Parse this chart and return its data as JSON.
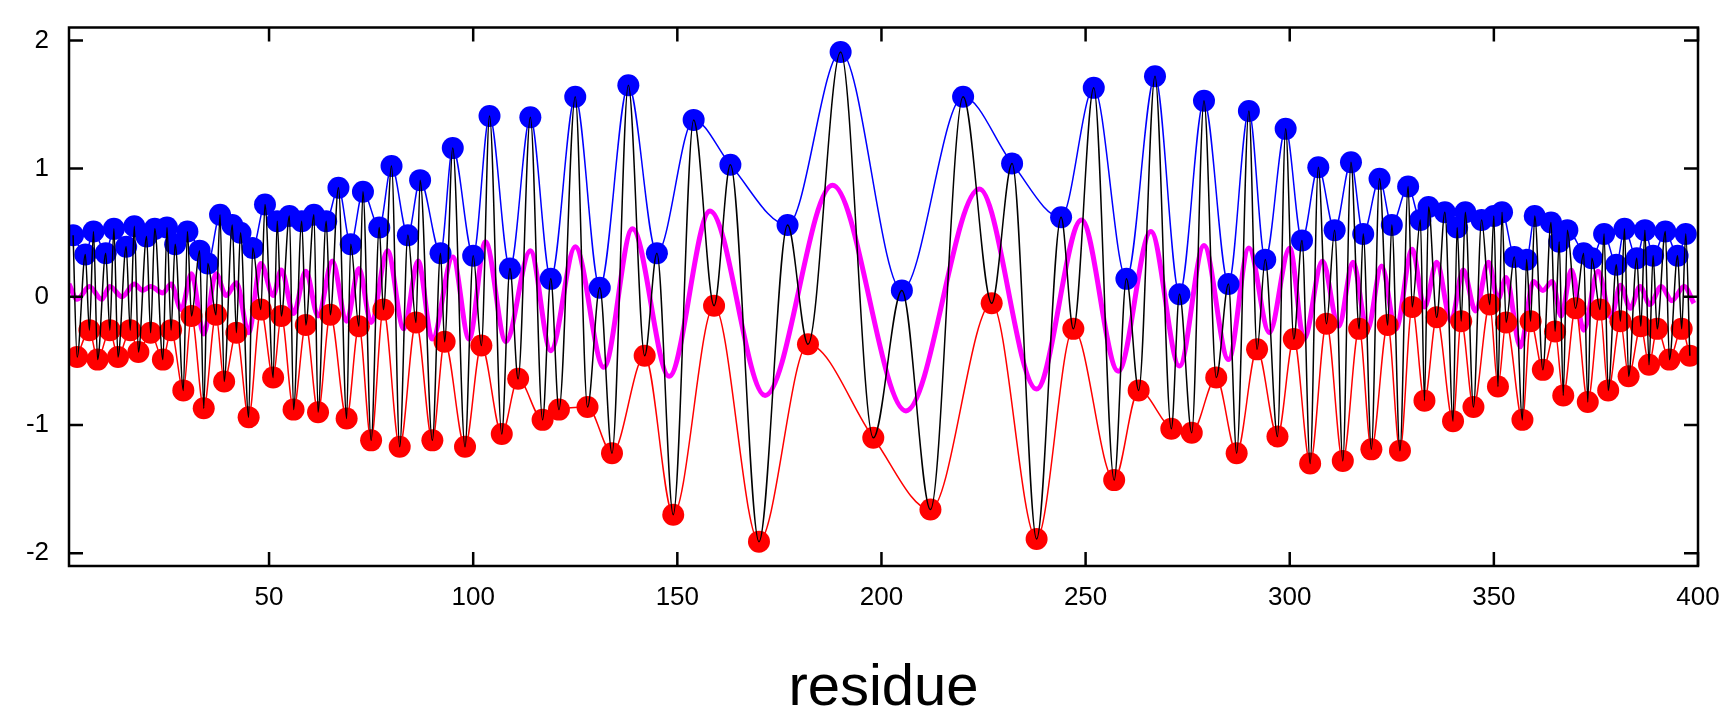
{
  "chart_data": {
    "type": "line",
    "xlabel": "residue",
    "xlim": [
      1,
      400
    ],
    "xticks": [
      50,
      100,
      150,
      200,
      250,
      300,
      350,
      400
    ],
    "ylim": [
      -2.1,
      2.1
    ],
    "yticks": [
      -2,
      -1,
      0,
      1,
      2
    ],
    "series": [
      {
        "type": "line",
        "color": "#000000",
        "marker": "none",
        "x": [
          2,
          3,
          5,
          6,
          7,
          8,
          10,
          11,
          12,
          13,
          15,
          16,
          17,
          18,
          20,
          21,
          22,
          24,
          25,
          26,
          27,
          29,
          30,
          31,
          33,
          34,
          35,
          37,
          38,
          39,
          41,
          42,
          43,
          45,
          46,
          48,
          49,
          51,
          52,
          53,
          55,
          56,
          58,
          59,
          61,
          62,
          64,
          65,
          67,
          69,
          70,
          72,
          73,
          75,
          77,
          78,
          80,
          82,
          84,
          86,
          87,
          90,
          92,
          93,
          95,
          98,
          100,
          102,
          104,
          107,
          109,
          111,
          114,
          117,
          119,
          121,
          125,
          128,
          131,
          134,
          138,
          142,
          145,
          149,
          154,
          159,
          163,
          170,
          177,
          182,
          190,
          198,
          205,
          212,
          220,
          227,
          232,
          238,
          244,
          247,
          252,
          257,
          260,
          263,
          267,
          271,
          273,
          276,
          279,
          282,
          285,
          287,
          290,
          292,
          294,
          297,
          299,
          301,
          303,
          305,
          307,
          309,
          311,
          313,
          315,
          317,
          318,
          320,
          322,
          324,
          325,
          327,
          329,
          330,
          332,
          333,
          334,
          336,
          338,
          340,
          341,
          342,
          343,
          345,
          347,
          349,
          350,
          351,
          352,
          353,
          355,
          357,
          358,
          359,
          360,
          362,
          364,
          365,
          366,
          367,
          368,
          370,
          372,
          373,
          374,
          376,
          377,
          378,
          380,
          381,
          382,
          383,
          385,
          386,
          387,
          388,
          389,
          390,
          392,
          393,
          395,
          396,
          397,
          398
        ],
        "values": [
          0.48,
          -0.47,
          0.33,
          -0.26,
          0.51,
          -0.49,
          0.34,
          -0.26,
          0.53,
          -0.47,
          0.39,
          -0.26,
          0.55,
          -0.43,
          0.47,
          -0.28,
          0.53,
          -0.49,
          0.54,
          -0.26,
          0.41,
          -0.73,
          0.51,
          -0.15,
          0.36,
          -0.87,
          0.26,
          -0.14,
          0.64,
          -0.66,
          0.56,
          -0.28,
          0.5,
          -0.94,
          0.38,
          -0.1,
          0.72,
          -0.63,
          0.59,
          -0.15,
          0.63,
          -0.88,
          0.59,
          -0.22,
          0.64,
          -0.9,
          0.59,
          -0.14,
          0.85,
          -0.95,
          0.41,
          -0.23,
          0.82,
          -1.12,
          0.54,
          -0.1,
          1.02,
          -1.17,
          0.48,
          -0.2,
          0.91,
          -1.12,
          0.34,
          -0.35,
          1.16,
          -1.17,
          0.32,
          -0.38,
          1.41,
          -1.07,
          0.22,
          -0.64,
          1.4,
          -0.96,
          0.14,
          -0.88,
          1.56,
          -0.86,
          0.07,
          -1.22,
          1.65,
          -0.46,
          0.34,
          -1.7,
          1.38,
          -0.07,
          1.03,
          -1.91,
          0.56,
          -0.37,
          1.91,
          -1.1,
          0.05,
          -1.66,
          1.56,
          -0.05,
          1.04,
          -1.89,
          0.62,
          -0.25,
          1.63,
          -1.43,
          0.14,
          -0.73,
          1.72,
          -1.03,
          0.02,
          -1.06,
          1.53,
          -0.63,
          0.1,
          -1.22,
          1.45,
          -0.41,
          0.29,
          -1.09,
          1.31,
          -0.33,
          0.44,
          -1.3,
          1.01,
          -0.21,
          0.52,
          -1.28,
          1.05,
          -0.25,
          0.49,
          -1.19,
          0.92,
          -0.22,
          0.56,
          -1.2,
          0.86,
          -0.08,
          0.6,
          -0.81,
          0.7,
          -0.16,
          0.66,
          -0.97,
          0.54,
          -0.19,
          0.66,
          -0.86,
          0.6,
          -0.06,
          0.63,
          -0.7,
          0.66,
          -0.2,
          0.31,
          -0.96,
          0.29,
          -0.19,
          0.63,
          -0.57,
          0.58,
          -0.27,
          0.43,
          -0.77,
          0.52,
          -0.09,
          0.34,
          -0.82,
          0.3,
          -0.1,
          0.49,
          -0.73,
          0.25,
          -0.19,
          0.53,
          -0.62,
          0.3,
          -0.23,
          0.52,
          -0.53,
          0.32,
          -0.25,
          0.51,
          -0.49,
          0.32,
          -0.25,
          0.49,
          -0.46
        ]
      },
      {
        "type": "line",
        "color": "#ff00ff",
        "marker": "none",
        "x": [
          1,
          3,
          6,
          9,
          11,
          14,
          17,
          19,
          21,
          24,
          26,
          28.5,
          31,
          34,
          37,
          39.5,
          42,
          45,
          48,
          51,
          53,
          56,
          59,
          62,
          65.5,
          69,
          72,
          75,
          79,
          83,
          86.5,
          90,
          95,
          99,
          103,
          108,
          114,
          119,
          125,
          132,
          139,
          148,
          158,
          171.5,
          188,
          206,
          224,
          238,
          249,
          258,
          266,
          273,
          279,
          285,
          290,
          295,
          300,
          303.5,
          308,
          312,
          315.5,
          319,
          322.5,
          326,
          330,
          333,
          336,
          339.5,
          342.5,
          345.5,
          348.7,
          351,
          353,
          356.5,
          359.7,
          362,
          364.3,
          366.5,
          369,
          372,
          375.5,
          378.7,
          381,
          383.4,
          385.8,
          388.2,
          391,
          393.6,
          396.6,
          399
        ],
        "values": [
          0.1,
          -0.02,
          0.08,
          -0.02,
          0.08,
          0,
          0.1,
          0.05,
          0.08,
          0.03,
          0.1,
          -0.1,
          0.18,
          -0.29,
          0.18,
          0.01,
          0.11,
          -0.28,
          0.26,
          0.01,
          0.21,
          -0.13,
          0.2,
          -0.15,
          0.28,
          -0.19,
          0.22,
          -0.2,
          0.36,
          -0.25,
          0.28,
          -0.33,
          0.31,
          -0.33,
          0.43,
          -0.35,
          0.36,
          -0.42,
          0.39,
          -0.55,
          0.53,
          -0.62,
          0.67,
          -0.77,
          0.87,
          -0.89,
          0.84,
          -0.72,
          0.6,
          -0.58,
          0.51,
          -0.54,
          0.4,
          -0.49,
          0.38,
          -0.28,
          0.38,
          -0.33,
          0.28,
          -0.23,
          0.27,
          -0.26,
          0.24,
          -0.25,
          0.37,
          -0.08,
          0.27,
          -0.19,
          0.21,
          -0.11,
          0.27,
          -0.02,
          0.15,
          -0.39,
          0.12,
          0.05,
          0.12,
          -0.15,
          0.21,
          -0.26,
          0.2,
          -0.16,
          0.09,
          -0.09,
          0.08,
          -0.06,
          0.08,
          -0.03,
          0.08,
          -0.05
        ]
      },
      {
        "type": "line",
        "color": "#0000ff",
        "marker": "circle",
        "x": [
          2,
          5,
          7,
          10,
          12,
          15,
          17,
          20,
          22,
          25,
          27,
          30,
          33,
          35,
          38,
          41,
          43,
          46,
          49,
          52,
          55,
          58,
          61,
          64,
          67,
          70,
          73,
          77,
          80,
          84,
          87,
          92,
          95,
          100,
          104,
          109,
          114,
          119,
          125,
          131,
          138,
          145,
          154,
          163,
          177,
          190,
          205,
          220,
          232,
          244,
          252,
          260,
          267,
          273,
          279,
          285,
          290,
          294,
          299,
          303,
          307,
          311,
          315,
          318,
          322,
          325,
          329,
          332,
          334,
          338,
          341,
          343,
          347,
          350,
          352,
          355,
          358,
          360,
          364,
          366,
          368,
          372,
          374,
          377,
          380,
          382,
          385,
          387,
          389,
          392,
          395,
          397
        ],
        "values": [
          0.48,
          0.33,
          0.51,
          0.34,
          0.53,
          0.39,
          0.55,
          0.47,
          0.53,
          0.54,
          0.41,
          0.51,
          0.36,
          0.26,
          0.64,
          0.56,
          0.5,
          0.38,
          0.72,
          0.59,
          0.63,
          0.59,
          0.64,
          0.59,
          0.85,
          0.41,
          0.82,
          0.54,
          1.02,
          0.48,
          0.91,
          0.34,
          1.16,
          0.32,
          1.41,
          0.22,
          1.4,
          0.14,
          1.56,
          0.07,
          1.65,
          0.34,
          1.38,
          1.03,
          0.56,
          1.91,
          0.05,
          1.56,
          1.04,
          0.62,
          1.63,
          0.14,
          1.72,
          0.02,
          1.53,
          0.1,
          1.45,
          0.29,
          1.31,
          0.44,
          1.01,
          0.52,
          1.05,
          0.49,
          0.92,
          0.56,
          0.86,
          0.6,
          0.7,
          0.66,
          0.54,
          0.66,
          0.6,
          0.63,
          0.66,
          0.31,
          0.29,
          0.63,
          0.58,
          0.43,
          0.52,
          0.34,
          0.3,
          0.49,
          0.25,
          0.53,
          0.3,
          0.52,
          0.32,
          0.51,
          0.32,
          0.49
        ]
      },
      {
        "type": "line",
        "color": "#ff0000",
        "marker": "circle",
        "x": [
          3,
          6,
          8,
          11,
          13,
          16,
          18,
          21,
          24,
          26,
          29,
          31,
          34,
          37,
          39,
          42,
          45,
          48,
          51,
          53,
          56,
          59,
          62,
          65,
          69,
          72,
          75,
          78,
          82,
          86,
          90,
          93,
          98,
          102,
          107,
          111,
          117,
          121,
          128,
          134,
          142,
          149,
          159,
          170,
          182,
          198,
          212,
          227,
          238,
          247,
          257,
          263,
          271,
          276,
          282,
          287,
          292,
          297,
          301,
          305,
          309,
          313,
          317,
          320,
          324,
          327,
          330,
          333,
          336,
          340,
          342,
          345,
          349,
          351,
          353,
          357,
          359,
          362,
          365,
          367,
          370,
          373,
          376,
          378,
          381,
          383,
          386,
          388,
          390,
          393,
          396,
          398
        ],
        "values": [
          -0.47,
          -0.26,
          -0.49,
          -0.26,
          -0.47,
          -0.26,
          -0.43,
          -0.28,
          -0.49,
          -0.26,
          -0.73,
          -0.15,
          -0.87,
          -0.14,
          -0.66,
          -0.28,
          -0.94,
          -0.1,
          -0.63,
          -0.15,
          -0.88,
          -0.22,
          -0.9,
          -0.14,
          -0.95,
          -0.23,
          -1.12,
          -0.1,
          -1.17,
          -0.2,
          -1.12,
          -0.35,
          -1.17,
          -0.38,
          -1.07,
          -0.64,
          -0.96,
          -0.88,
          -0.86,
          -1.22,
          -0.46,
          -1.7,
          -0.07,
          -1.91,
          -0.37,
          -1.1,
          -1.66,
          -0.05,
          -1.89,
          -0.25,
          -1.43,
          -0.73,
          -1.03,
          -1.06,
          -0.63,
          -1.22,
          -0.41,
          -1.09,
          -0.33,
          -1.3,
          -0.21,
          -1.28,
          -0.25,
          -1.19,
          -0.22,
          -1.2,
          -0.08,
          -0.81,
          -0.16,
          -0.97,
          -0.19,
          -0.86,
          -0.06,
          -0.7,
          -0.2,
          -0.96,
          -0.19,
          -0.57,
          -0.27,
          -0.77,
          -0.09,
          -0.82,
          -0.1,
          -0.73,
          -0.19,
          -0.62,
          -0.23,
          -0.53,
          -0.25,
          -0.49,
          -0.25,
          -0.46
        ]
      }
    ]
  }
}
